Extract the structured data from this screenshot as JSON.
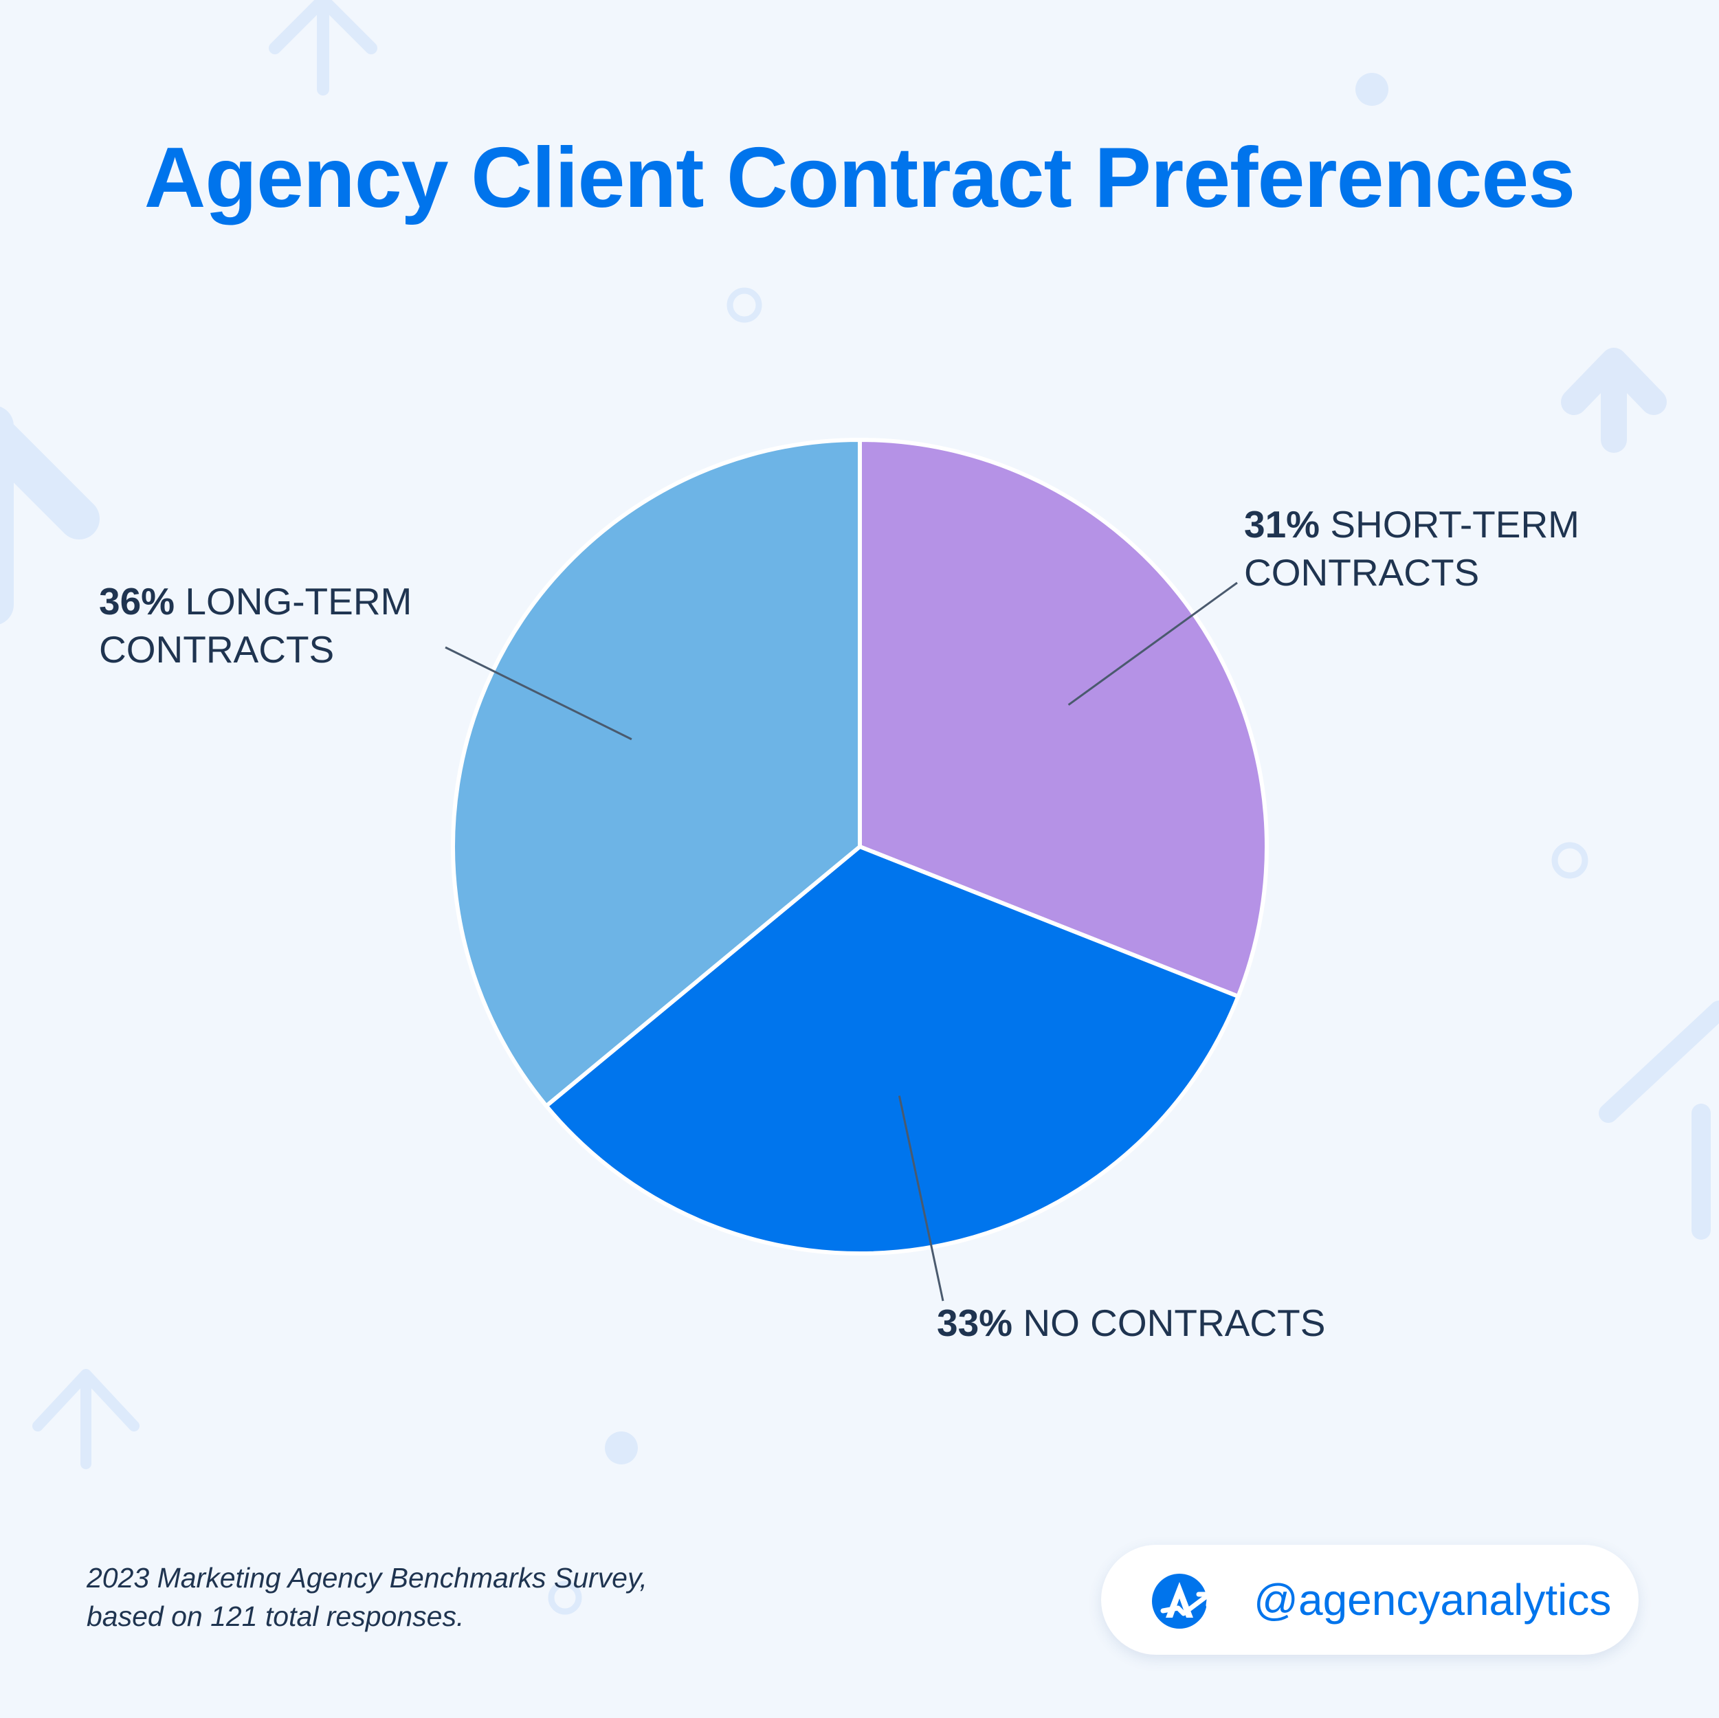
{
  "title": "Agency Client Contract Preferences",
  "chart_data": {
    "type": "pie",
    "title": "Agency Client Contract Preferences",
    "slices": [
      {
        "label": "SHORT-TERM CONTRACTS",
        "value": 31,
        "value_text": "31%",
        "line1": "SHORT-TERM",
        "line2": "CONTRACTS",
        "color": "#b592e6"
      },
      {
        "label": "NO CONTRACTS",
        "value": 33,
        "value_text": "33%",
        "line1": "NO CONTRACTS",
        "line2": "",
        "color": "#0075ed"
      },
      {
        "label": "LONG-TERM CONTRACTS",
        "value": 36,
        "value_text": "36%",
        "line1": "LONG-TERM",
        "line2": "CONTRACTS",
        "color": "#6db4e6"
      }
    ],
    "start_angle_deg": 0,
    "direction": "clockwise"
  },
  "source": {
    "line1": "2023 Marketing Agency Benchmarks Survey,",
    "line2": "based on 121 total responses."
  },
  "branding": {
    "handle": "@agencyanalytics",
    "logo_icon": "agencyanalytics-logo-icon",
    "accent": "#0074ec"
  }
}
